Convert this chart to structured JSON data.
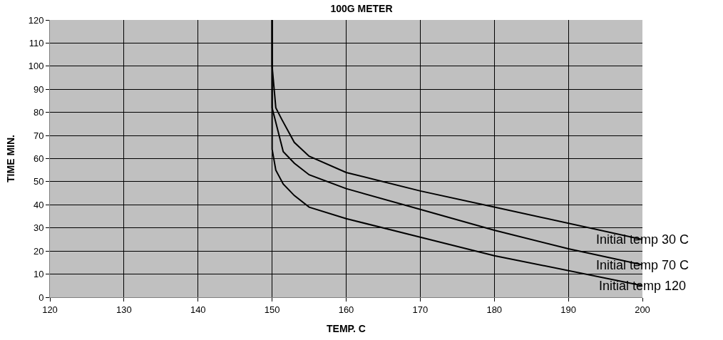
{
  "chart_data": {
    "type": "line",
    "title": "100G METER",
    "xlabel": "TEMP. C",
    "ylabel": "TIME MIN.",
    "xlim": [
      120,
      200
    ],
    "xticks": [
      120,
      130,
      140,
      150,
      160,
      170,
      180,
      190,
      200
    ],
    "ylim": [
      0,
      120
    ],
    "yticks": [
      0,
      10,
      20,
      30,
      40,
      50,
      60,
      70,
      80,
      90,
      100,
      110,
      120
    ],
    "grid": true,
    "legend": false,
    "marker": "none",
    "line_style": "solid",
    "series": [
      {
        "name": "Initial temp 30 C",
        "color": "#000000",
        "x": [
          150,
          150,
          150.5,
          151.3,
          153,
          155,
          160,
          170,
          180,
          200
        ],
        "values": [
          120,
          100,
          82,
          77,
          67,
          61,
          54,
          46,
          39,
          25
        ]
      },
      {
        "name": "Initial temp 70 C",
        "color": "#000000",
        "x": [
          150,
          150,
          151.5,
          153,
          155,
          160,
          170,
          180,
          190,
          200
        ],
        "values": [
          120,
          82,
          63,
          58,
          53,
          47,
          38,
          29,
          21,
          14
        ]
      },
      {
        "name": "Initial temp 120",
        "color": "#000000",
        "x": [
          150,
          150,
          150.5,
          151.5,
          153,
          155,
          160,
          170,
          180,
          200
        ],
        "values": [
          120,
          64,
          55,
          49,
          44,
          39,
          34,
          26,
          18,
          5
        ]
      }
    ]
  }
}
